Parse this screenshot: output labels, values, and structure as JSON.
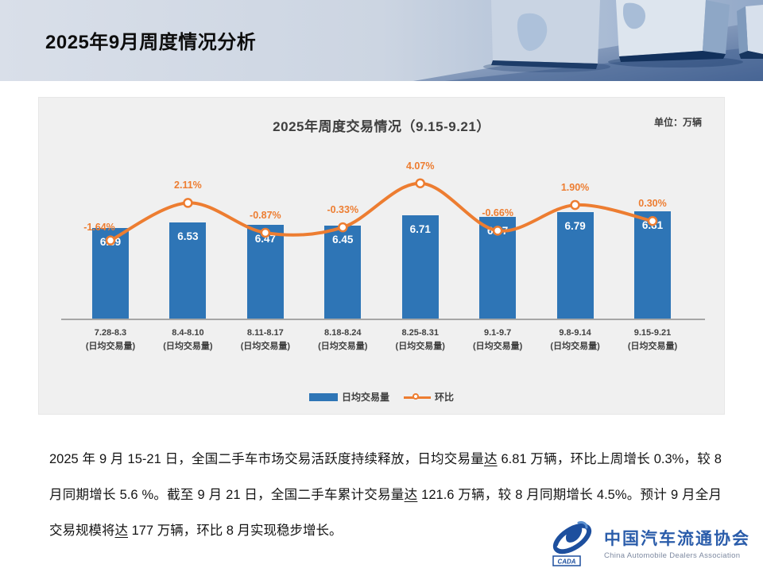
{
  "slide": {
    "title": "2025年9月周度情况分析"
  },
  "chart": {
    "title": "2025年周度交易情况（9.15-9.21）",
    "unit_label": "单位：万辆",
    "legend": [
      {
        "label": "日均交易量",
        "type": "bar"
      },
      {
        "label": "环比",
        "type": "line"
      }
    ]
  },
  "chart_data": {
    "type": "bar",
    "title": "2025年周度交易情况（9.15-9.21）",
    "unit": "万辆",
    "categories": [
      "7.28-8.3",
      "8.4-8.10",
      "8.11-8.17",
      "8.18-8.24",
      "8.25-8.31",
      "9.1-9.7",
      "9.8-9.14",
      "9.15-9.21"
    ],
    "category_sublabel": "(日均交易量)",
    "series": [
      {
        "name": "日均交易量",
        "type": "bar",
        "values": [
          6.39,
          6.53,
          6.47,
          6.45,
          6.71,
          6.67,
          6.79,
          6.81
        ],
        "color": "#2E75B6"
      },
      {
        "name": "环比",
        "type": "line",
        "values": [
          -1.64,
          2.11,
          -0.87,
          -0.33,
          4.07,
          -0.66,
          1.9,
          0.3
        ],
        "labels": [
          "-1.64%",
          "2.11%",
          "-0.87%",
          "-0.33%",
          "4.07%",
          "-0.66%",
          "1.90%",
          "0.30%"
        ],
        "color": "#ED7D31"
      }
    ],
    "legend_position": "bottom",
    "grid": false
  },
  "body": {
    "segments": [
      {
        "text": "2025 年 9 月 15-21 日，全国二手车市场交易活跃度持续释放，日均交易量",
        "underline": false
      },
      {
        "text": "达",
        "underline": true
      },
      {
        "text": " 6.81 万辆，环比上周增长 0.3%，较 8 月同期增长 5.6 %。截至 9 月 21 日，全国二手车累计交易量",
        "underline": false
      },
      {
        "text": "达",
        "underline": true
      },
      {
        "text": " 121.6 万辆，较 8 月同期增长 4.5%。预计 9 月全月交易规模将",
        "underline": false
      },
      {
        "text": "达",
        "underline": true
      },
      {
        "text": " 177 万辆，环比 8 月实现稳步增长。",
        "underline": false
      }
    ]
  },
  "logo": {
    "cn": "中国汽车流通协会",
    "en": "China Automobile Dealers Association",
    "emblem_text": "CADA"
  }
}
